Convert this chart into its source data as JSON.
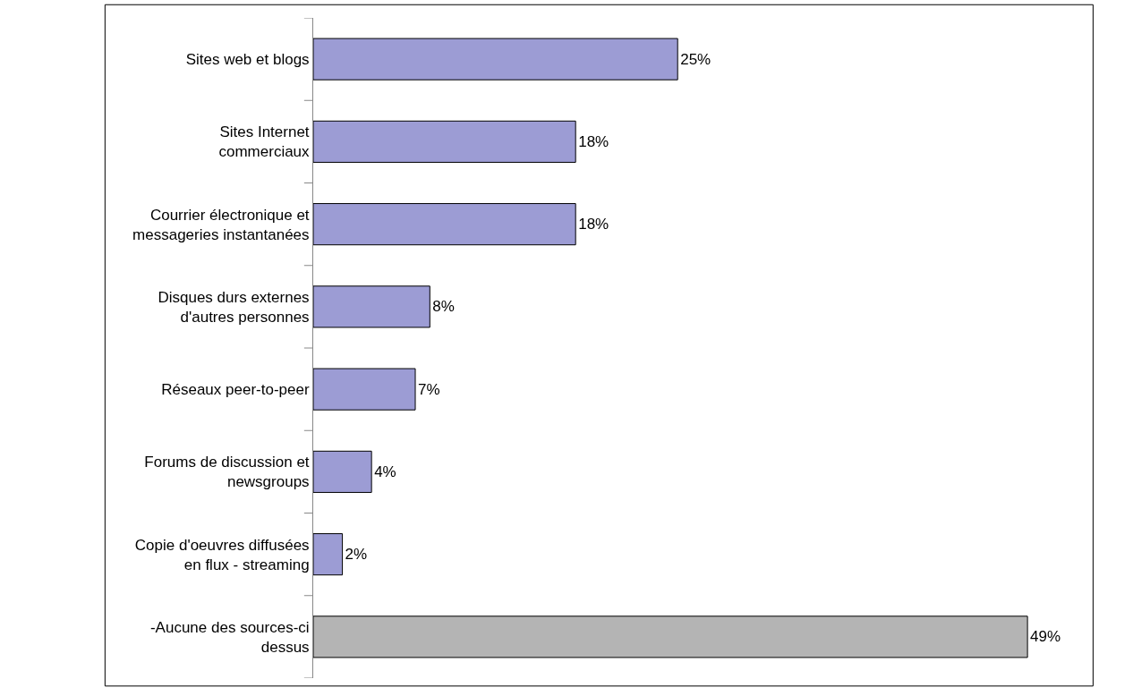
{
  "chart_data": {
    "type": "bar",
    "orientation": "horizontal",
    "categories": [
      "Sites web et blogs",
      "Sites Internet\ncommerciaux",
      "Courrier électronique et\nmessageries instantanées",
      "Disques durs externes\nd'autres personnes",
      "Réseaux peer-to-peer",
      "Forums de discussion et\nnewsgroups",
      "Copie d'oeuvres diffusées\nen flux - streaming",
      "-Aucune des sources-ci\ndessus"
    ],
    "values": [
      25,
      18,
      18,
      8,
      7,
      4,
      2,
      49
    ],
    "value_labels": [
      "25%",
      "18%",
      "18%",
      "8%",
      "7%",
      "4%",
      "2%",
      "49%"
    ],
    "colors": [
      "#9c9cd4",
      "#9c9cd4",
      "#9c9cd4",
      "#9c9cd4",
      "#9c9cd4",
      "#9c9cd4",
      "#9c9cd4",
      "#b4b4b4"
    ]
  }
}
